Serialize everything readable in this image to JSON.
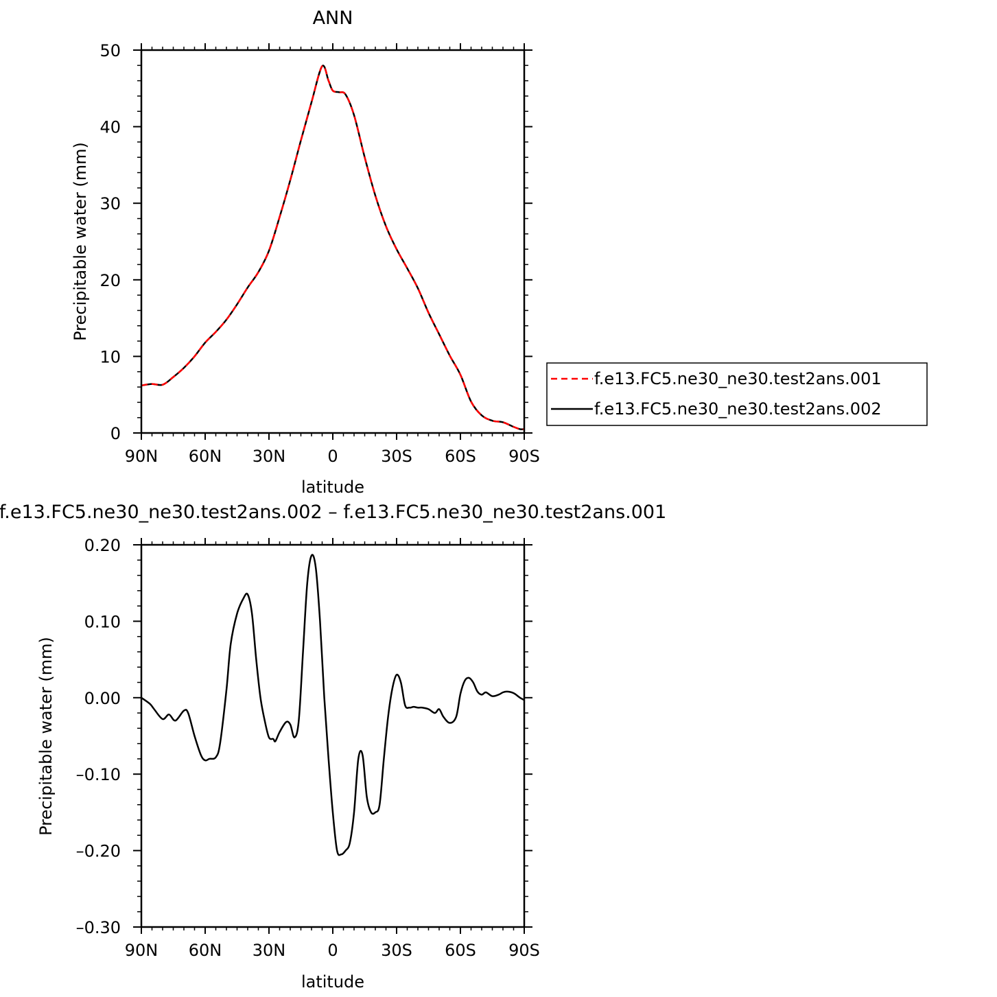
{
  "chart_data": [
    {
      "type": "line",
      "title": "ANN",
      "xlabel": "latitude",
      "ylabel": "Precipitable water (mm)",
      "xlim": [
        90,
        -90
      ],
      "ylim": [
        0,
        50
      ],
      "xticks": [
        90,
        60,
        30,
        0,
        -30,
        -60,
        -90
      ],
      "xtick_labels": [
        "90N",
        "60N",
        "30N",
        "0",
        "30S",
        "60S",
        "90S"
      ],
      "yticks": [
        0,
        10,
        20,
        30,
        40,
        50
      ],
      "ytick_labels": [
        "0",
        "10",
        "20",
        "30",
        "40",
        "50"
      ],
      "legend_position": "right",
      "series": [
        {
          "name": "f.e13.FC5.ne30_ne30.test2ans.001",
          "color": "#ff0000",
          "dash": "dashed",
          "x": [
            90,
            85,
            80,
            75,
            70,
            65,
            60,
            55,
            50,
            45,
            40,
            35,
            30,
            25,
            20,
            15,
            10,
            5,
            2,
            0,
            -3,
            -6,
            -10,
            -15,
            -20,
            -25,
            -30,
            -35,
            -40,
            -45,
            -50,
            -55,
            -60,
            -65,
            -70,
            -75,
            -80,
            -85,
            -88,
            -90
          ],
          "y": [
            6.2,
            6.4,
            6.3,
            7.3,
            8.5,
            10.0,
            11.8,
            13.2,
            14.8,
            16.8,
            19.0,
            21.0,
            23.8,
            28.2,
            33.0,
            38.2,
            43.2,
            47.9,
            46.0,
            44.7,
            44.5,
            44.2,
            41.5,
            36.0,
            31.0,
            27.0,
            24.0,
            21.5,
            18.9,
            15.7,
            12.9,
            10.1,
            7.6,
            4.1,
            2.3,
            1.6,
            1.4,
            0.8,
            0.5,
            0.5
          ]
        },
        {
          "name": "f.e13.FC5.ne30_ne30.test2ans.002",
          "color": "#000000",
          "dash": "solid",
          "x": [
            90,
            85,
            80,
            75,
            70,
            65,
            60,
            55,
            50,
            45,
            40,
            35,
            30,
            25,
            20,
            15,
            10,
            5,
            2,
            0,
            -3,
            -6,
            -10,
            -15,
            -20,
            -25,
            -30,
            -35,
            -40,
            -45,
            -50,
            -55,
            -60,
            -65,
            -70,
            -75,
            -80,
            -85,
            -88,
            -90
          ],
          "y": [
            6.2,
            6.4,
            6.3,
            7.3,
            8.5,
            10.0,
            11.8,
            13.2,
            14.8,
            16.8,
            19.0,
            21.0,
            23.8,
            28.2,
            33.0,
            38.2,
            43.2,
            47.9,
            46.0,
            44.7,
            44.5,
            44.2,
            41.5,
            36.0,
            31.0,
            27.0,
            24.0,
            21.5,
            18.9,
            15.7,
            12.9,
            10.1,
            7.6,
            4.1,
            2.3,
            1.6,
            1.4,
            0.8,
            0.5,
            0.5
          ]
        }
      ]
    },
    {
      "type": "line",
      "title": "f.e13.FC5.ne30_ne30.test2ans.002 – f.e13.FC5.ne30_ne30.test2ans.001",
      "xlabel": "latitude",
      "ylabel": "Precipitable water (mm)",
      "xlim": [
        90,
        -90
      ],
      "ylim": [
        -0.3,
        0.2
      ],
      "xticks": [
        90,
        60,
        30,
        0,
        -30,
        -60,
        -90
      ],
      "xtick_labels": [
        "90N",
        "60N",
        "30N",
        "0",
        "30S",
        "60S",
        "90S"
      ],
      "yticks": [
        -0.3,
        -0.2,
        -0.1,
        0.0,
        0.1,
        0.2
      ],
      "ytick_labels": [
        "–0.30",
        "–0.20",
        "–0.10",
        "0.00",
        "0.10",
        "0.20"
      ],
      "series": [
        {
          "color": "#000000",
          "dash": "solid",
          "x": [
            90,
            86,
            84,
            80,
            77,
            74,
            70,
            68,
            65,
            62,
            60,
            58,
            55,
            53,
            50,
            48,
            45,
            42,
            40,
            38,
            36,
            34,
            32,
            30,
            28,
            27,
            25,
            22,
            20,
            18,
            16,
            14,
            12,
            10,
            8,
            6,
            4,
            2,
            0,
            -2,
            -4,
            -6,
            -8,
            -10,
            -12,
            -14,
            -16,
            -18,
            -20,
            -22,
            -24,
            -26,
            -28,
            -30,
            -32,
            -34,
            -36,
            -38,
            -40,
            -42,
            -45,
            -48,
            -50,
            -52,
            -55,
            -58,
            -60,
            -62,
            -64,
            -66,
            -68,
            -70,
            -72,
            -75,
            -78,
            -80,
            -82,
            -85,
            -88,
            -90
          ],
          "y": [
            0.0,
            -0.008,
            -0.015,
            -0.028,
            -0.022,
            -0.03,
            -0.017,
            -0.02,
            -0.05,
            -0.075,
            -0.082,
            -0.08,
            -0.078,
            -0.06,
            0.01,
            0.07,
            0.11,
            0.13,
            0.135,
            0.11,
            0.05,
            0.0,
            -0.03,
            -0.052,
            -0.054,
            -0.057,
            -0.045,
            -0.032,
            -0.035,
            -0.052,
            -0.03,
            0.06,
            0.15,
            0.186,
            0.17,
            0.1,
            0.0,
            -0.08,
            -0.15,
            -0.2,
            -0.205,
            -0.2,
            -0.19,
            -0.15,
            -0.08,
            -0.075,
            -0.13,
            -0.15,
            -0.15,
            -0.14,
            -0.08,
            -0.025,
            0.012,
            0.03,
            0.02,
            -0.01,
            -0.013,
            -0.012,
            -0.013,
            -0.013,
            -0.015,
            -0.02,
            -0.015,
            -0.025,
            -0.033,
            -0.025,
            0.005,
            0.022,
            0.026,
            0.02,
            0.008,
            0.004,
            0.007,
            0.002,
            0.004,
            0.007,
            0.008,
            0.006,
            0.0,
            -0.003
          ]
        }
      ]
    }
  ]
}
